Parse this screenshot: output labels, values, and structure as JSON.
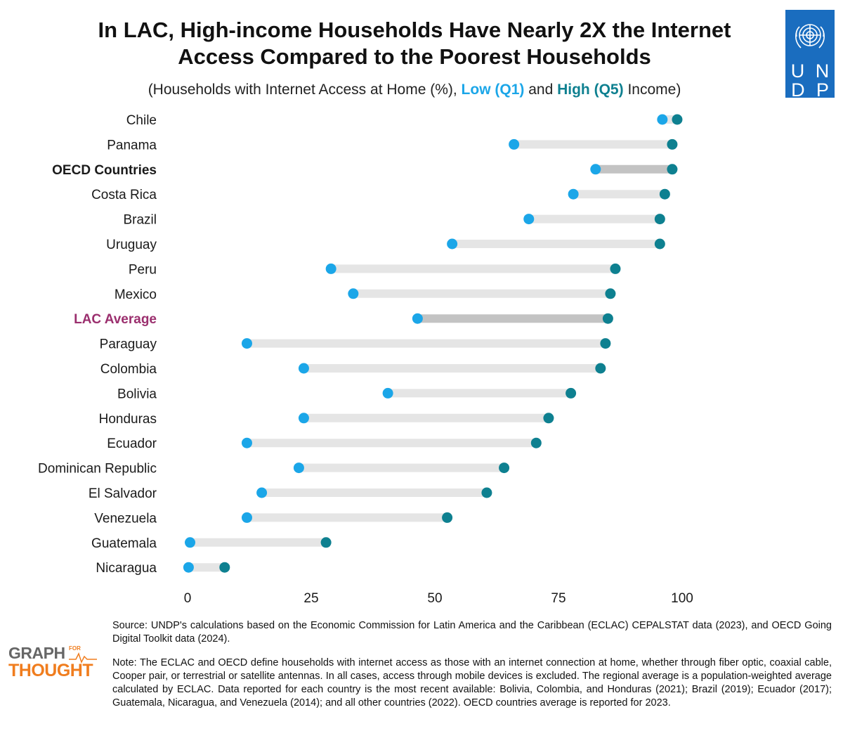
{
  "title_line1": "In LAC, High-income Households Have Nearly 2X the Internet",
  "title_line2": "Access Compared to the Poorest Households",
  "subtitle_pre": "(Households with Internet Access at Home (%),",
  "subtitle_low": "Low (Q1)",
  "subtitle_and": "and",
  "subtitle_high": "High (Q5)",
  "subtitle_post": "Income)",
  "logo": {
    "row1": [
      "U",
      "N"
    ],
    "row2": [
      "D",
      "P"
    ],
    "bg": "#1a6dbf"
  },
  "source": "Source: UNDP's calculations based on the Economic Commission for Latin America and the Caribbean (ECLAC) CEPALSTAT data (2023), and OECD Going Digital Toolkit data (2024).",
  "note": "Note: The ECLAC and OECD define households with internet access as those with an internet connection at home, whether through fiber optic, coaxial cable, Cooper pair, or terrestrial or satellite antennas. In all cases, access through mobile devices is excluded. The regional average is a population-weighted average calculated by ECLAC. Data reported for each country is the most recent available: Bolivia, Colombia, and Honduras (2021); Brazil (2019); Ecuador (2017); Guatemala, Nicaragua, and Venezuela (2014); and all other countries (2022). OECD countries average is reported for 2023.",
  "brand": {
    "line1": "GRAPH",
    "for": "FOR",
    "line2": "THOUGHT"
  },
  "colors": {
    "low": "#1ba6e8",
    "high": "#0e8090",
    "bar": "#e5e5e5",
    "bar_highlight": "#c3c3c3",
    "lac_label": "#9b2f6e"
  },
  "chart_data": {
    "type": "dumbbell",
    "xlim": [
      0,
      100
    ],
    "xticks": [
      0,
      25,
      50,
      75,
      100
    ],
    "series": [
      {
        "name": "Low (Q1)",
        "key": "low"
      },
      {
        "name": "High (Q5)",
        "key": "high"
      }
    ],
    "rows": [
      {
        "label": "Chile",
        "low": 96,
        "high": 99,
        "style": "normal"
      },
      {
        "label": "Panama",
        "low": 66,
        "high": 98,
        "style": "normal"
      },
      {
        "label": "OECD Countries",
        "low": 82.5,
        "high": 98,
        "style": "oecd"
      },
      {
        "label": "Costa Rica",
        "low": 78,
        "high": 96.5,
        "style": "normal"
      },
      {
        "label": "Brazil",
        "low": 69,
        "high": 95.5,
        "style": "normal"
      },
      {
        "label": "Uruguay",
        "low": 53.5,
        "high": 95.5,
        "style": "normal"
      },
      {
        "label": "Peru",
        "low": 29,
        "high": 86.5,
        "style": "normal"
      },
      {
        "label": "Mexico",
        "low": 33.5,
        "high": 85.5,
        "style": "normal"
      },
      {
        "label": "LAC Average",
        "low": 46.5,
        "high": 85,
        "style": "lac"
      },
      {
        "label": "Paraguay",
        "low": 12,
        "high": 84.5,
        "style": "normal"
      },
      {
        "label": "Colombia",
        "low": 23.5,
        "high": 83.5,
        "style": "normal"
      },
      {
        "label": "Bolivia",
        "low": 40.5,
        "high": 77.5,
        "style": "normal"
      },
      {
        "label": "Honduras",
        "low": 23.5,
        "high": 73,
        "style": "normal"
      },
      {
        "label": "Ecuador",
        "low": 12,
        "high": 70.5,
        "style": "normal"
      },
      {
        "label": "Dominican Republic",
        "low": 22.5,
        "high": 64,
        "style": "normal"
      },
      {
        "label": "El Salvador",
        "low": 15,
        "high": 60.5,
        "style": "normal"
      },
      {
        "label": "Venezuela",
        "low": 12,
        "high": 52.5,
        "style": "normal"
      },
      {
        "label": "Guatemala",
        "low": 0.5,
        "high": 28,
        "style": "normal"
      },
      {
        "label": "Nicaragua",
        "low": 0.2,
        "high": 7.5,
        "style": "normal"
      }
    ]
  }
}
